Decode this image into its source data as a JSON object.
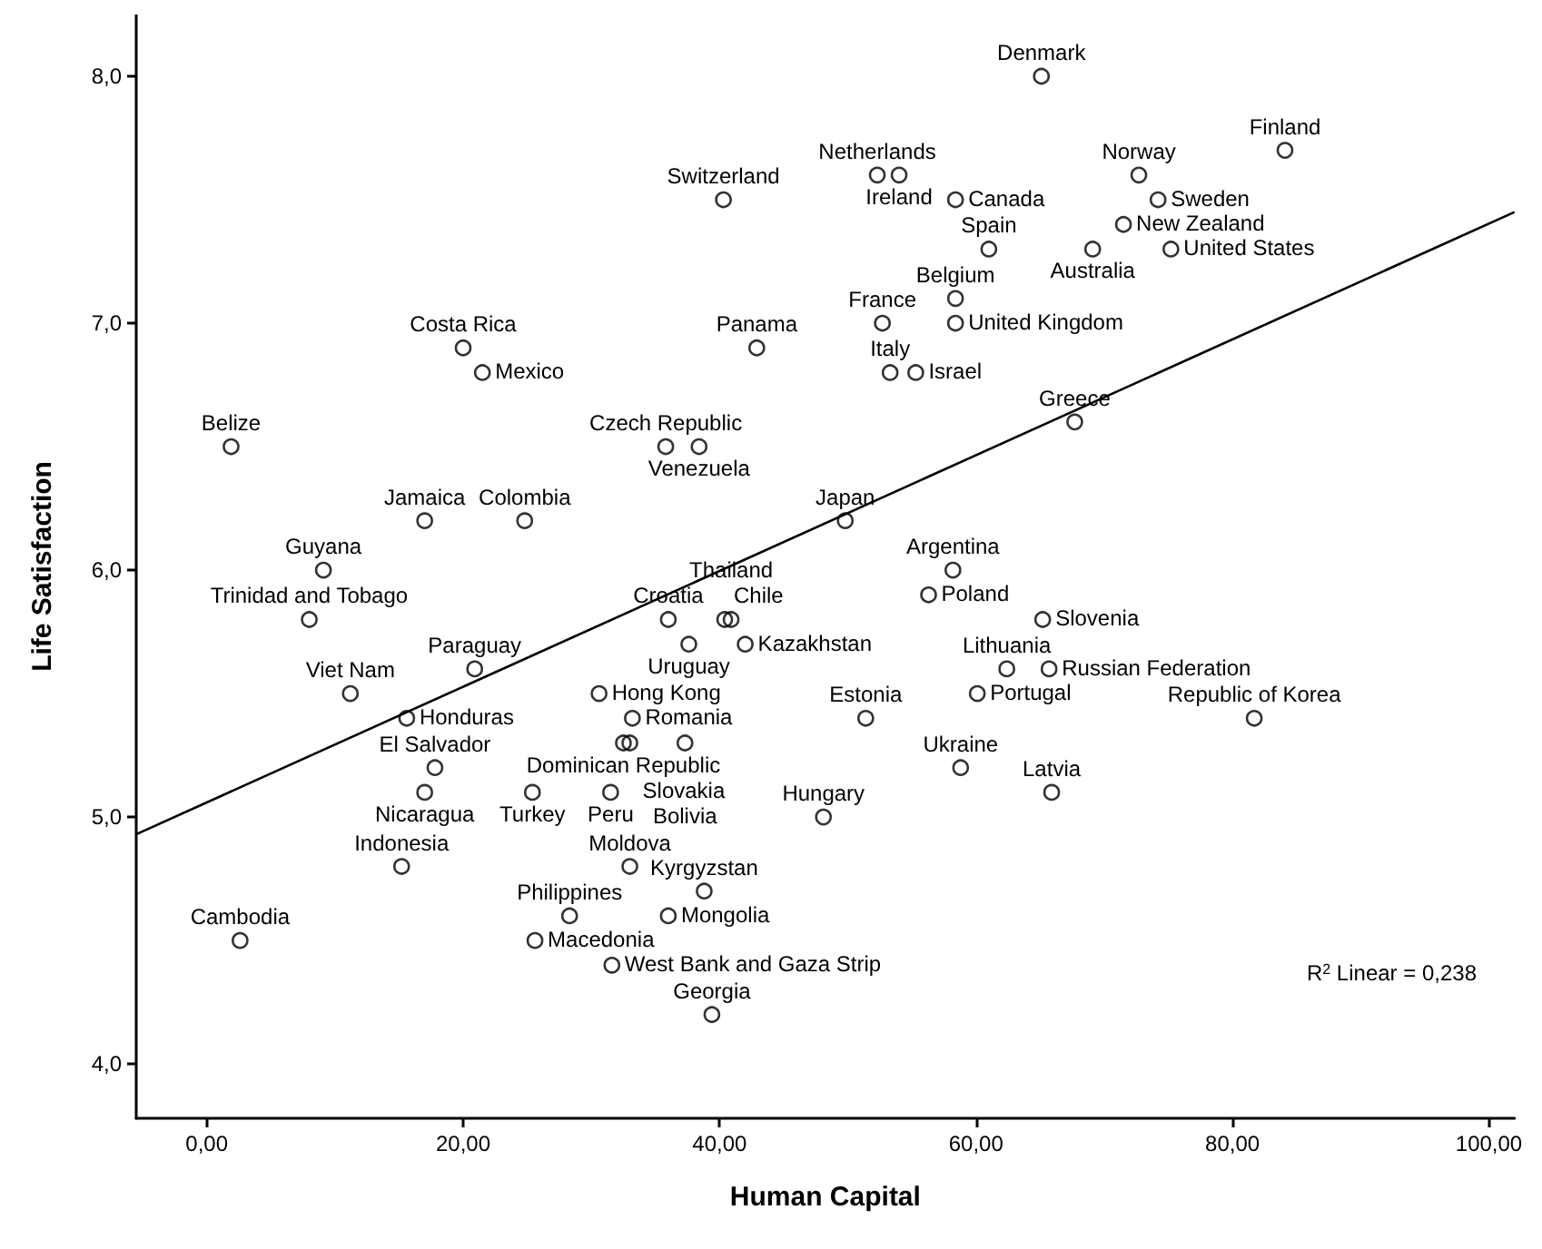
{
  "chart_data": {
    "type": "scatter",
    "xlabel": "Human Capital",
    "ylabel": "Life Satisfaction",
    "xlim": [
      -5.5,
      102
    ],
    "ylim": [
      3.78,
      8.25
    ],
    "xticks": [
      {
        "value": 0,
        "label": "0,00"
      },
      {
        "value": 20,
        "label": "20,00"
      },
      {
        "value": 40,
        "label": "40,00"
      },
      {
        "value": 60,
        "label": "60,00"
      },
      {
        "value": 80,
        "label": "80,00"
      },
      {
        "value": 100,
        "label": "100,00"
      }
    ],
    "yticks": [
      {
        "value": 4,
        "label": "4,0"
      },
      {
        "value": 5,
        "label": "5,0"
      },
      {
        "value": 6,
        "label": "6,0"
      },
      {
        "value": 7,
        "label": "7,0"
      },
      {
        "value": 8,
        "label": "8,0"
      }
    ],
    "grid": false,
    "marker": "circle",
    "series": [
      {
        "color": "#000000",
        "x": [
          65.1,
          52.3,
          54.0,
          40.3,
          58.4,
          72.7,
          84.1,
          74.2,
          61.0,
          71.5,
          69.1,
          75.2,
          58.4,
          52.7,
          58.4,
          42.9,
          53.3,
          55.3,
          67.7,
          20.0,
          21.5,
          1.9,
          35.8,
          38.4,
          17.0,
          24.8,
          49.8,
          9.1,
          58.2,
          56.3,
          8.0,
          36.0,
          40.4,
          40.9,
          65.2,
          37.6,
          42.0,
          20.9,
          62.4,
          65.7,
          11.2,
          30.6,
          60.1,
          15.6,
          33.2,
          51.4,
          81.7,
          32.5,
          33.0,
          37.3,
          17.8,
          58.8,
          17.0,
          25.4,
          31.5,
          65.9,
          48.1,
          15.2,
          33.0,
          38.8,
          28.3,
          36.0,
          2.6,
          25.6,
          31.6,
          39.4
        ],
        "values": [
          8.0,
          7.6,
          7.6,
          7.5,
          7.5,
          7.6,
          7.7,
          7.5,
          7.3,
          7.4,
          7.3,
          7.3,
          7.1,
          7.0,
          7.0,
          6.9,
          6.8,
          6.8,
          6.6,
          6.9,
          6.8,
          6.5,
          6.5,
          6.5,
          6.2,
          6.2,
          6.2,
          6.0,
          6.0,
          5.9,
          5.8,
          5.8,
          5.8,
          5.8,
          5.8,
          5.7,
          5.7,
          5.6,
          5.6,
          5.6,
          5.5,
          5.5,
          5.5,
          5.4,
          5.4,
          5.4,
          5.4,
          5.3,
          5.3,
          5.3,
          5.2,
          5.2,
          5.1,
          5.1,
          5.1,
          5.1,
          5.0,
          4.8,
          4.8,
          4.7,
          4.6,
          4.6,
          4.5,
          4.5,
          4.4,
          4.2
        ]
      },
      {
        "type": "line",
        "color": "#000000",
        "marker": "none",
        "x": [
          -5.5,
          102
        ],
        "values": [
          4.93,
          7.45
        ]
      }
    ],
    "annotations": [
      {
        "text": "Denmark",
        "x": 65.1,
        "y": 8.0
      },
      {
        "text": "Netherlands",
        "x": 52.3,
        "y": 7.6
      },
      {
        "text": "Ireland",
        "x": 54.0,
        "y": 7.6
      },
      {
        "text": "Switzerland",
        "x": 40.3,
        "y": 7.5
      },
      {
        "text": "Canada",
        "x": 58.4,
        "y": 7.5
      },
      {
        "text": "Norway",
        "x": 72.7,
        "y": 7.6
      },
      {
        "text": "Finland",
        "x": 84.1,
        "y": 7.7
      },
      {
        "text": "Sweden",
        "x": 74.2,
        "y": 7.5
      },
      {
        "text": "Spain",
        "x": 61.0,
        "y": 7.3
      },
      {
        "text": "New Zealand",
        "x": 71.5,
        "y": 7.4
      },
      {
        "text": "Australia",
        "x": 69.1,
        "y": 7.3
      },
      {
        "text": "United States",
        "x": 75.2,
        "y": 7.3
      },
      {
        "text": "Belgium",
        "x": 58.4,
        "y": 7.1
      },
      {
        "text": "France",
        "x": 52.7,
        "y": 7.0
      },
      {
        "text": "United Kingdom",
        "x": 58.4,
        "y": 7.0
      },
      {
        "text": "Panama",
        "x": 42.9,
        "y": 6.9
      },
      {
        "text": "Italy",
        "x": 53.3,
        "y": 6.8
      },
      {
        "text": "Israel",
        "x": 55.3,
        "y": 6.8
      },
      {
        "text": "Greece",
        "x": 67.7,
        "y": 6.6
      },
      {
        "text": "Costa Rica",
        "x": 20.0,
        "y": 6.9
      },
      {
        "text": "Mexico",
        "x": 21.5,
        "y": 6.8
      },
      {
        "text": "Belize",
        "x": 1.9,
        "y": 6.5
      },
      {
        "text": "Czech Republic",
        "x": 35.8,
        "y": 6.5
      },
      {
        "text": "Venezuela",
        "x": 38.4,
        "y": 6.5
      },
      {
        "text": "Jamaica",
        "x": 17.0,
        "y": 6.2
      },
      {
        "text": "Colombia",
        "x": 24.8,
        "y": 6.2
      },
      {
        "text": "Japan",
        "x": 49.8,
        "y": 6.2
      },
      {
        "text": "Guyana",
        "x": 9.1,
        "y": 6.0
      },
      {
        "text": "Argentina",
        "x": 58.2,
        "y": 6.0
      },
      {
        "text": "Poland",
        "x": 56.3,
        "y": 5.9
      },
      {
        "text": "Trinidad and Tobago",
        "x": 8.0,
        "y": 5.8
      },
      {
        "text": "Croatia",
        "x": 36.0,
        "y": 5.8
      },
      {
        "text": "Chile",
        "x": 40.4,
        "y": 5.8
      },
      {
        "text": "Thailand",
        "x": 40.9,
        "y": 5.8
      },
      {
        "text": "Slovenia",
        "x": 65.2,
        "y": 5.8
      },
      {
        "text": "Uruguay",
        "x": 37.6,
        "y": 5.7
      },
      {
        "text": "Kazakhstan",
        "x": 42.0,
        "y": 5.7
      },
      {
        "text": "Paraguay",
        "x": 20.9,
        "y": 5.6
      },
      {
        "text": "Lithuania",
        "x": 62.4,
        "y": 5.6
      },
      {
        "text": "Russian Federation",
        "x": 65.7,
        "y": 5.6
      },
      {
        "text": "Viet Nam",
        "x": 11.2,
        "y": 5.5
      },
      {
        "text": "Hong Kong",
        "x": 30.6,
        "y": 5.5
      },
      {
        "text": "Portugal",
        "x": 60.1,
        "y": 5.5
      },
      {
        "text": "Honduras",
        "x": 15.6,
        "y": 5.4
      },
      {
        "text": "Romania",
        "x": 33.2,
        "y": 5.4
      },
      {
        "text": "Estonia",
        "x": 51.4,
        "y": 5.4
      },
      {
        "text": "Republic of Korea",
        "x": 81.7,
        "y": 5.4
      },
      {
        "text": "Dominican Republic",
        "x": 32.5,
        "y": 5.3
      },
      {
        "text": "Slovakia",
        "x": 33.0,
        "y": 5.3
      },
      {
        "text": "Bolivia",
        "x": 37.3,
        "y": 5.3
      },
      {
        "text": "El Salvador",
        "x": 17.8,
        "y": 5.2
      },
      {
        "text": "Ukraine",
        "x": 58.8,
        "y": 5.2
      },
      {
        "text": "Nicaragua",
        "x": 17.0,
        "y": 5.1
      },
      {
        "text": "Turkey",
        "x": 25.4,
        "y": 5.1
      },
      {
        "text": "Peru",
        "x": 31.5,
        "y": 5.1
      },
      {
        "text": "Latvia",
        "x": 65.9,
        "y": 5.1
      },
      {
        "text": "Hungary",
        "x": 48.1,
        "y": 5.0
      },
      {
        "text": "Indonesia",
        "x": 15.2,
        "y": 4.8
      },
      {
        "text": "Moldova",
        "x": 33.0,
        "y": 4.8
      },
      {
        "text": "Kyrgyzstan",
        "x": 38.8,
        "y": 4.7
      },
      {
        "text": "Philippines",
        "x": 28.3,
        "y": 4.6
      },
      {
        "text": "Mongolia",
        "x": 36.0,
        "y": 4.6
      },
      {
        "text": "Cambodia",
        "x": 2.6,
        "y": 4.5
      },
      {
        "text": "Macedonia",
        "x": 25.6,
        "y": 4.5
      },
      {
        "text": "West Bank and Gaza Strip",
        "x": 31.6,
        "y": 4.4
      },
      {
        "text": "Georgia",
        "x": 39.4,
        "y": 4.2
      },
      "R$^{2}$ Linear = 0,238"
    ]
  }
}
